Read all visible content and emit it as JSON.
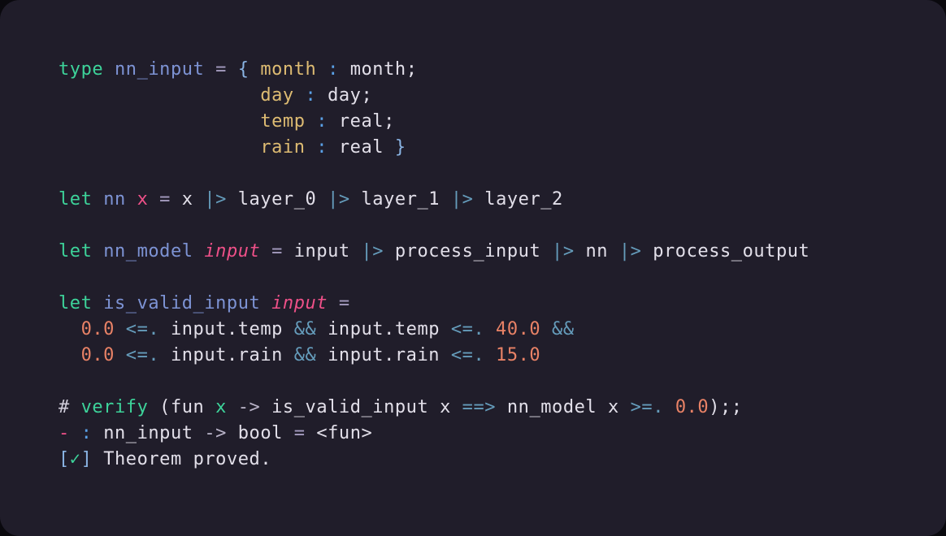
{
  "palette": {
    "background_outer": "#0a090e",
    "background_panel": "#201d2a",
    "kw": "#3dd39a",
    "name": "#7d93d4",
    "field": "#ddbb72",
    "colon": "#5aa0e6",
    "bracket": "#8ab4e4",
    "param": "#ee5088",
    "pink": "#ee5088",
    "num": "#e98266",
    "op": "#659cbb",
    "eq": "#a59cc0",
    "arrow": "#b9b3c8",
    "prompt": "#cfccd9",
    "check": "#3dd39a",
    "text": "#e2dfe9"
  },
  "terminal": {
    "status_line": "[✓] Theorem proved.",
    "repl_prompt": "#",
    "lines": [
      {
        "tokens": [
          [
            "type",
            "kw"
          ],
          [
            " ",
            "text"
          ],
          [
            "nn_input",
            "name"
          ],
          [
            " ",
            "text"
          ],
          [
            "=",
            "eq"
          ],
          [
            " ",
            "text"
          ],
          [
            "{",
            "bracket"
          ],
          [
            " ",
            "text"
          ],
          [
            "month",
            "field"
          ],
          [
            " ",
            "text"
          ],
          [
            ":",
            "colon"
          ],
          [
            " ",
            "text"
          ],
          [
            "month;",
            "text"
          ]
        ]
      },
      {
        "tokens": [
          [
            "                  ",
            "text"
          ],
          [
            "day",
            "field"
          ],
          [
            " ",
            "text"
          ],
          [
            ":",
            "colon"
          ],
          [
            " ",
            "text"
          ],
          [
            "day;",
            "text"
          ]
        ]
      },
      {
        "tokens": [
          [
            "                  ",
            "text"
          ],
          [
            "temp",
            "field"
          ],
          [
            " ",
            "text"
          ],
          [
            ":",
            "colon"
          ],
          [
            " ",
            "text"
          ],
          [
            "real;",
            "text"
          ]
        ]
      },
      {
        "tokens": [
          [
            "                  ",
            "text"
          ],
          [
            "rain",
            "field"
          ],
          [
            " ",
            "text"
          ],
          [
            ":",
            "colon"
          ],
          [
            " ",
            "text"
          ],
          [
            "real",
            "text"
          ],
          [
            " ",
            "text"
          ],
          [
            "}",
            "bracket"
          ]
        ]
      },
      {
        "tokens": []
      },
      {
        "tokens": [
          [
            "let",
            "kw"
          ],
          [
            " ",
            "text"
          ],
          [
            "nn",
            "name"
          ],
          [
            " ",
            "text"
          ],
          [
            "x",
            "pink"
          ],
          [
            " ",
            "text"
          ],
          [
            "=",
            "eq"
          ],
          [
            " ",
            "text"
          ],
          [
            "x",
            "text"
          ],
          [
            " ",
            "text"
          ],
          [
            "|>",
            "op"
          ],
          [
            " ",
            "text"
          ],
          [
            "layer_0",
            "text"
          ],
          [
            " ",
            "text"
          ],
          [
            "|>",
            "op"
          ],
          [
            " ",
            "text"
          ],
          [
            "layer_1",
            "text"
          ],
          [
            " ",
            "text"
          ],
          [
            "|>",
            "op"
          ],
          [
            " ",
            "text"
          ],
          [
            "layer_2",
            "text"
          ]
        ]
      },
      {
        "tokens": []
      },
      {
        "tokens": [
          [
            "let",
            "kw"
          ],
          [
            " ",
            "text"
          ],
          [
            "nn_model",
            "name"
          ],
          [
            " ",
            "text"
          ],
          [
            "input",
            "param"
          ],
          [
            " ",
            "text"
          ],
          [
            "=",
            "eq"
          ],
          [
            " ",
            "text"
          ],
          [
            "input",
            "text"
          ],
          [
            " ",
            "text"
          ],
          [
            "|>",
            "op"
          ],
          [
            " ",
            "text"
          ],
          [
            "process_input",
            "text"
          ],
          [
            " ",
            "text"
          ],
          [
            "|>",
            "op"
          ],
          [
            " ",
            "text"
          ],
          [
            "nn",
            "text"
          ],
          [
            " ",
            "text"
          ],
          [
            "|>",
            "op"
          ],
          [
            " ",
            "text"
          ],
          [
            "process_output",
            "text"
          ]
        ]
      },
      {
        "tokens": []
      },
      {
        "tokens": [
          [
            "let",
            "kw"
          ],
          [
            " ",
            "text"
          ],
          [
            "is_valid_input",
            "name"
          ],
          [
            " ",
            "text"
          ],
          [
            "input",
            "param"
          ],
          [
            " ",
            "text"
          ],
          [
            "=",
            "eq"
          ]
        ]
      },
      {
        "tokens": [
          [
            "  ",
            "text"
          ],
          [
            "0.0",
            "num"
          ],
          [
            " ",
            "text"
          ],
          [
            "<=.",
            "op"
          ],
          [
            " ",
            "text"
          ],
          [
            "input.temp",
            "text"
          ],
          [
            " ",
            "text"
          ],
          [
            "&&",
            "op"
          ],
          [
            " ",
            "text"
          ],
          [
            "input.temp",
            "text"
          ],
          [
            " ",
            "text"
          ],
          [
            "<=.",
            "op"
          ],
          [
            " ",
            "text"
          ],
          [
            "40.0",
            "num"
          ],
          [
            " ",
            "text"
          ],
          [
            "&&",
            "op"
          ]
        ]
      },
      {
        "tokens": [
          [
            "  ",
            "text"
          ],
          [
            "0.0",
            "num"
          ],
          [
            " ",
            "text"
          ],
          [
            "<=.",
            "op"
          ],
          [
            " ",
            "text"
          ],
          [
            "input.rain",
            "text"
          ],
          [
            " ",
            "text"
          ],
          [
            "&&",
            "op"
          ],
          [
            " ",
            "text"
          ],
          [
            "input.rain",
            "text"
          ],
          [
            " ",
            "text"
          ],
          [
            "<=.",
            "op"
          ],
          [
            " ",
            "text"
          ],
          [
            "15.0",
            "num"
          ]
        ]
      },
      {
        "tokens": []
      },
      {
        "tokens": [
          [
            "#",
            "prompt"
          ],
          [
            " ",
            "text"
          ],
          [
            "verify",
            "kw"
          ],
          [
            " ",
            "text"
          ],
          [
            "(fun",
            "text"
          ],
          [
            " ",
            "text"
          ],
          [
            "x",
            "kw"
          ],
          [
            " ",
            "text"
          ],
          [
            "->",
            "arrow"
          ],
          [
            " ",
            "text"
          ],
          [
            "is_valid_input",
            "text"
          ],
          [
            " ",
            "text"
          ],
          [
            "x",
            "text"
          ],
          [
            " ",
            "text"
          ],
          [
            "==>",
            "op"
          ],
          [
            " ",
            "text"
          ],
          [
            "nn_model",
            "text"
          ],
          [
            " ",
            "text"
          ],
          [
            "x",
            "text"
          ],
          [
            " ",
            "text"
          ],
          [
            ">=.",
            "op"
          ],
          [
            " ",
            "text"
          ],
          [
            "0.0",
            "num"
          ],
          [
            ");;",
            "text"
          ]
        ]
      },
      {
        "tokens": [
          [
            "-",
            "pink"
          ],
          [
            " ",
            "text"
          ],
          [
            ":",
            "colon"
          ],
          [
            " ",
            "text"
          ],
          [
            "nn_input",
            "text"
          ],
          [
            " ",
            "text"
          ],
          [
            "->",
            "arrow"
          ],
          [
            " ",
            "text"
          ],
          [
            "bool",
            "text"
          ],
          [
            " ",
            "text"
          ],
          [
            "=",
            "eq"
          ],
          [
            " ",
            "text"
          ],
          [
            "<fun>",
            "text"
          ]
        ]
      },
      {
        "tokens": [
          [
            "[",
            "bracket"
          ],
          [
            "✓",
            "check"
          ],
          [
            "]",
            "bracket"
          ],
          [
            " ",
            "text"
          ],
          [
            "Theorem",
            "text"
          ],
          [
            " ",
            "text"
          ],
          [
            "proved.",
            "text"
          ]
        ]
      }
    ]
  }
}
